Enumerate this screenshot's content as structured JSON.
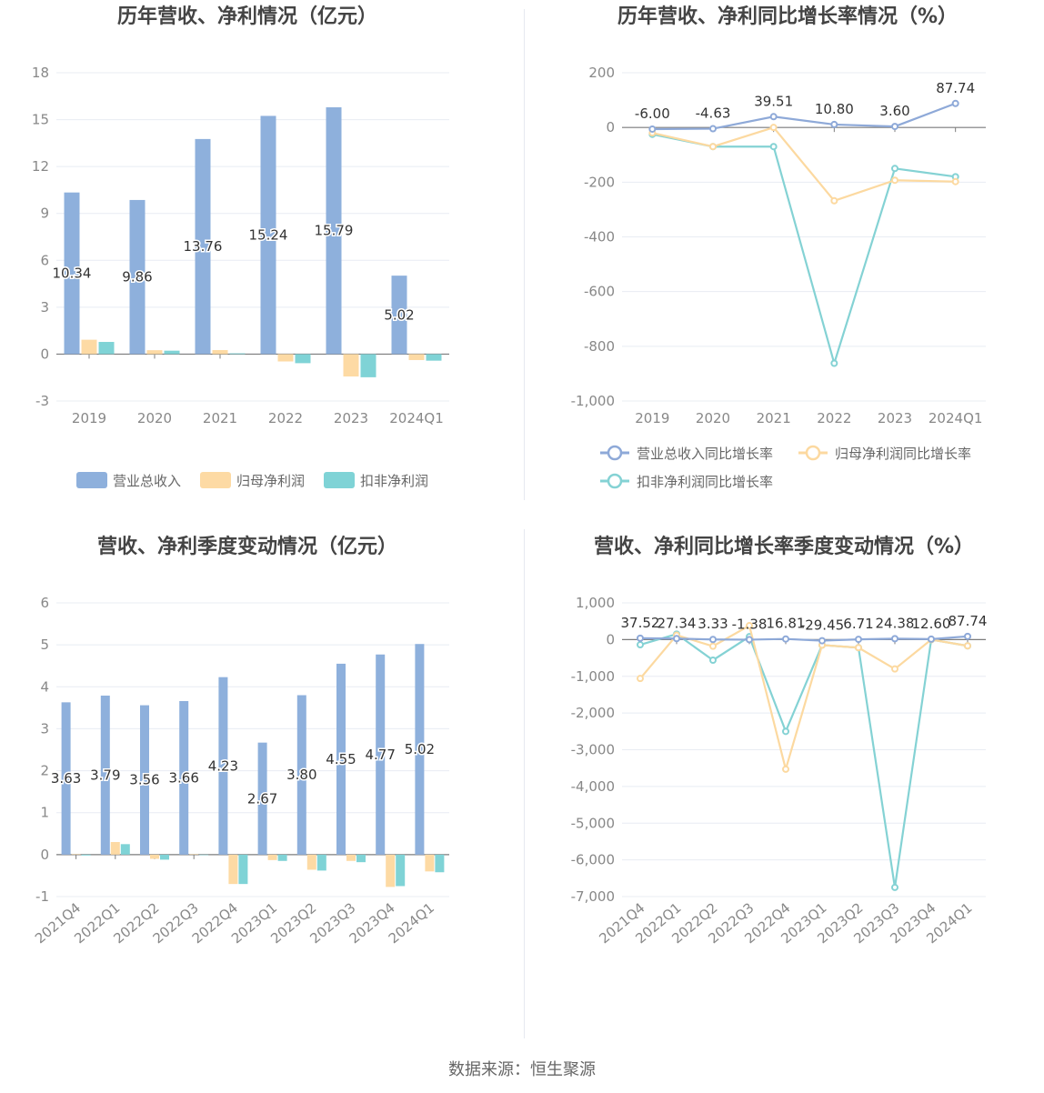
{
  "colors": {
    "revenue": "#8eb0dc",
    "parent_profit": "#fddaa4",
    "deducted_profit": "#7fd3d6",
    "revenue_line": "#8ea9d8",
    "parent_line": "#fcd9a0",
    "deducted_line": "#84d2d4"
  },
  "source_label": "数据来源：恒生聚源",
  "chart_data": [
    {
      "type": "bar",
      "title": "历年营收、净利情况（亿元）",
      "categories": [
        "2019",
        "2020",
        "2021",
        "2022",
        "2023",
        "2024Q1"
      ],
      "ylim": [
        -3,
        18
      ],
      "yticks": [
        "18",
        "15",
        "12",
        "9",
        "6",
        "3",
        "0",
        "-3"
      ],
      "series": [
        {
          "name": "营业总收入",
          "values": [
            10.34,
            9.86,
            13.76,
            15.24,
            15.79,
            5.02
          ],
          "labels": [
            "10.34",
            "9.86",
            "13.76",
            "15.24",
            "15.79",
            "5.02"
          ]
        },
        {
          "name": "归母净利润",
          "values": [
            0.92,
            0.25,
            0.26,
            -0.47,
            -1.43,
            -0.38
          ]
        },
        {
          "name": "扣非净利润",
          "values": [
            0.78,
            0.22,
            0.05,
            -0.58,
            -1.48,
            -0.42
          ]
        }
      ]
    },
    {
      "type": "line",
      "title": "历年营收、净利同比增长率情况（%）",
      "categories": [
        "2019",
        "2020",
        "2021",
        "2022",
        "2023",
        "2024Q1"
      ],
      "ylim": [
        -1000,
        200
      ],
      "yticks": [
        "200",
        "0",
        "-200",
        "-400",
        "-600",
        "-800",
        "-1,000"
      ],
      "series": [
        {
          "name": "营业总收入同比增长率",
          "values": [
            -6.0,
            -4.63,
            39.51,
            10.8,
            3.6,
            87.74
          ],
          "labels": [
            "-6.00",
            "-4.63",
            "39.51",
            "10.80",
            "3.60",
            "87.74"
          ]
        },
        {
          "name": "归母净利润同比增长率",
          "values": [
            -20,
            -70,
            0,
            -268,
            -193,
            -198
          ]
        },
        {
          "name": "扣非净利润同比增长率",
          "values": [
            -25,
            -70,
            -70,
            -862,
            -150,
            -180
          ]
        }
      ]
    },
    {
      "type": "bar",
      "title": "营收、净利季度变动情况（亿元）",
      "categories": [
        "2021Q4",
        "2022Q1",
        "2022Q2",
        "2022Q3",
        "2022Q4",
        "2023Q1",
        "2023Q2",
        "2023Q3",
        "2023Q4",
        "2024Q1"
      ],
      "ylim": [
        -1,
        6
      ],
      "yticks": [
        "6",
        "5",
        "4",
        "3",
        "2",
        "1",
        "0",
        "-1"
      ],
      "series": [
        {
          "name": "营业总收入",
          "values": [
            3.63,
            3.79,
            3.56,
            3.66,
            4.23,
            2.67,
            3.8,
            4.55,
            4.77,
            5.02
          ],
          "labels": [
            "3.63",
            "3.79",
            "3.56",
            "3.66",
            "4.23",
            "2.67",
            "3.80",
            "4.55",
            "4.77",
            "5.02"
          ]
        },
        {
          "name": "归母净利润",
          "values": [
            0.01,
            0.3,
            -0.1,
            0.01,
            -0.7,
            -0.13,
            -0.36,
            -0.15,
            -0.77,
            -0.4
          ]
        },
        {
          "name": "扣非净利润",
          "values": [
            -0.02,
            0.25,
            -0.12,
            0.0,
            -0.7,
            -0.15,
            -0.38,
            -0.18,
            -0.75,
            -0.42
          ]
        }
      ]
    },
    {
      "type": "line",
      "title": "营收、净利同比增长率季度变动情况（%）",
      "categories": [
        "2021Q4",
        "2022Q1",
        "2022Q2",
        "2022Q3",
        "2022Q4",
        "2023Q1",
        "2023Q2",
        "2023Q3",
        "2023Q4",
        "2024Q1"
      ],
      "ylim": [
        -7000,
        1000
      ],
      "yticks": [
        "1,000",
        "0",
        "-1,000",
        "-2,000",
        "-3,000",
        "-4,000",
        "-5,000",
        "-6,000",
        "-7,000"
      ],
      "series": [
        {
          "name": "营业总收入同比增长率",
          "values": [
            37.52,
            27.34,
            3.33,
            -1.38,
            16.81,
            -29.45,
            6.71,
            24.38,
            12.6,
            87.74
          ],
          "labels": [
            "37.52",
            "27.34",
            "3.33",
            "-1.38",
            "16.81",
            "-29.45",
            "6.71",
            "24.38",
            "12.60",
            "87.74"
          ]
        },
        {
          "name": "归母净利润同比增长率",
          "values": [
            -1060,
            120,
            -180,
            380,
            -3530,
            -150,
            -220,
            -800,
            0,
            -170
          ]
        },
        {
          "name": "扣非净利润同比增长率",
          "values": [
            -140,
            150,
            -560,
            80,
            -2500,
            -150,
            -220,
            -6750,
            0,
            -170
          ]
        }
      ]
    }
  ]
}
